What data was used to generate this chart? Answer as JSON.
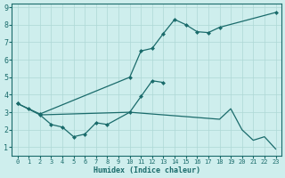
{
  "xlabel": "Humidex (Indice chaleur)",
  "bg_color": "#ceeeed",
  "grid_color": "#aed8d5",
  "line_color": "#1a6b6b",
  "xlim": [
    -0.5,
    23.5
  ],
  "ylim": [
    0.5,
    9.2
  ],
  "xticks": [
    0,
    1,
    2,
    3,
    4,
    5,
    6,
    7,
    8,
    9,
    10,
    11,
    12,
    13,
    14,
    15,
    16,
    17,
    18,
    19,
    20,
    21,
    22,
    23
  ],
  "yticks": [
    1,
    2,
    3,
    4,
    5,
    6,
    7,
    8,
    9
  ],
  "line1_x": [
    0,
    1,
    2,
    10,
    11,
    12,
    13,
    14,
    15,
    16,
    17,
    18,
    23
  ],
  "line1_y": [
    3.5,
    3.2,
    2.9,
    5.0,
    6.5,
    6.65,
    7.5,
    8.3,
    8.0,
    7.6,
    7.55,
    7.85,
    8.7
  ],
  "line2_x": [
    0,
    2,
    3,
    4,
    5,
    6,
    7,
    8,
    10,
    11,
    12,
    13
  ],
  "line2_y": [
    3.5,
    2.85,
    2.3,
    2.15,
    1.6,
    1.75,
    2.4,
    2.3,
    3.0,
    3.9,
    4.8,
    4.7
  ],
  "line3_x": [
    2,
    10,
    11,
    12,
    13,
    14,
    15,
    16,
    17,
    18,
    19,
    20,
    21,
    22,
    23
  ],
  "line3_y": [
    2.85,
    3.0,
    2.95,
    2.9,
    2.85,
    2.8,
    2.75,
    2.7,
    2.65,
    2.6,
    3.2,
    2.0,
    1.4,
    1.6,
    0.9
  ],
  "marker_size": 2.5
}
